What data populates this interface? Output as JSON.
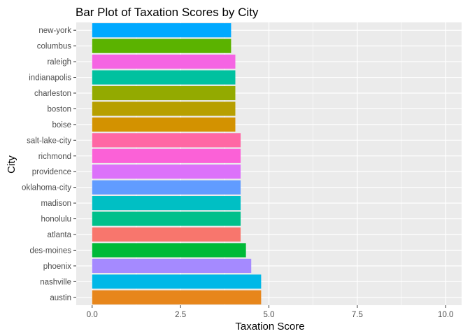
{
  "chart_data": {
    "type": "bar",
    "orientation": "horizontal",
    "title": "Bar Plot of Taxation Scores by City",
    "xlabel": "Taxation Score",
    "ylabel": "City",
    "xlim": [
      -0.45,
      10.45
    ],
    "x_ticks": [
      0,
      2.5,
      5,
      7.5,
      10
    ],
    "x_tick_labels": [
      "0.0",
      "2.5",
      "5.0",
      "7.5",
      "10.0"
    ],
    "grid": true,
    "legend": "none",
    "categories": [
      "austin",
      "nashville",
      "phoenix",
      "des-moines",
      "atlanta",
      "honolulu",
      "madison",
      "oklahoma-city",
      "providence",
      "richmond",
      "salt-lake-city",
      "boise",
      "boston",
      "charleston",
      "indianapolis",
      "raleigh",
      "columbus",
      "new-york"
    ],
    "values": [
      4.78,
      4.78,
      4.5,
      4.35,
      4.2,
      4.2,
      4.2,
      4.2,
      4.2,
      4.2,
      4.2,
      4.05,
      4.05,
      4.05,
      4.05,
      4.05,
      3.93,
      3.93
    ],
    "colors": [
      "#E7861B",
      "#00B8E7",
      "#A58AFF",
      "#00BA38",
      "#F8766D",
      "#00C08B",
      "#00BFC4",
      "#619CFF",
      "#DC71FA",
      "#FB61D7",
      "#FF67A4",
      "#D39200",
      "#B79F00",
      "#93AA00",
      "#00C19F",
      "#F564E3",
      "#5BB300",
      "#00A9FF"
    ],
    "panel_background": "#EBEBEB",
    "grid_color": "#FFFFFF"
  }
}
